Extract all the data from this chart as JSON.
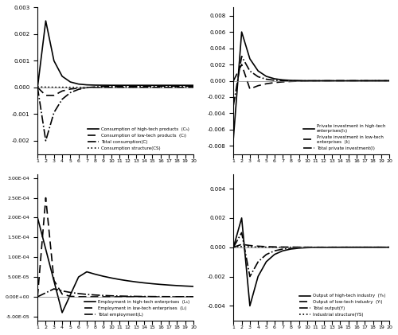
{
  "x": [
    1,
    2,
    3,
    4,
    5,
    6,
    7,
    8,
    9,
    10,
    11,
    12,
    13,
    14,
    15,
    16,
    17,
    18,
    19,
    20
  ],
  "panel1": {
    "ylim": [
      -0.0025,
      0.003
    ],
    "yticks": [
      -0.002,
      -0.001,
      0,
      0.001,
      0.002,
      0.003
    ],
    "legend": [
      "Consumption of high-tech products  (Cₕ)",
      "Consumption of low-tech products  (Cₗ)",
      "Total consumption(C)",
      "Consumption structure(CS)"
    ]
  },
  "panel2": {
    "ylim": [
      -0.009,
      0.009
    ],
    "yticks": [
      -0.008,
      -0.006,
      -0.004,
      -0.002,
      0,
      0.002,
      0.004,
      0.006,
      0.008
    ],
    "legend": [
      "Private investment in high-tech\nenterprises(Iₕ)",
      "Private investment in low-tech\nenterprises  (Iₗ)",
      "Total private investment(I)"
    ]
  },
  "panel3": {
    "ylim": [
      -6e-05,
      0.00031
    ],
    "yticks": [
      -5e-05,
      0.0,
      5e-05,
      0.0001,
      0.00015,
      0.0002,
      0.00025,
      0.0003
    ],
    "legend": [
      "Employment in high-tech enterprises  (Lₕ)",
      "Employment in low-tech enterprises  (Lₗ)",
      "Total employment(L)"
    ]
  },
  "panel4": {
    "ylim": [
      -0.005,
      0.005
    ],
    "yticks": [
      -0.004,
      -0.002,
      0,
      0.002,
      0.004
    ],
    "legend": [
      "Output of high-tech industry  (Yₕ)",
      "Output of low-tech industry  (Yₗ)",
      "Total output(Y)",
      "Industrial structure(YS)"
    ]
  }
}
